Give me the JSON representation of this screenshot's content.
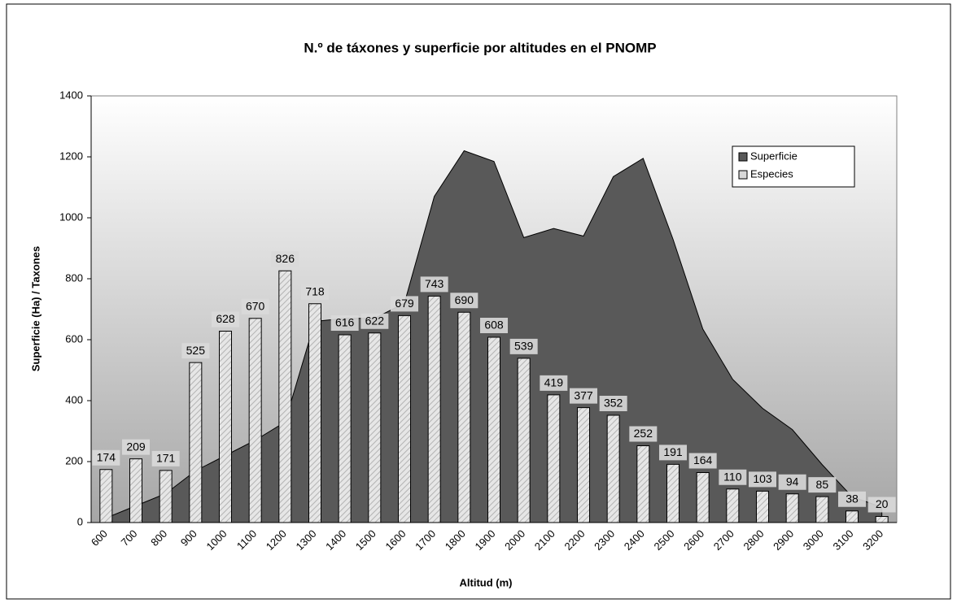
{
  "chart_data": {
    "type": "bar",
    "title": "N.º de táxones y superficie por altitudes en el PNOMP",
    "xlabel": "Altitud (m)",
    "ylabel": "Superficie (Ha) / Taxones",
    "categories": [
      "600",
      "700",
      "800",
      "900",
      "1000",
      "1100",
      "1200",
      "1300",
      "1400",
      "1500",
      "1600",
      "1700",
      "1800",
      "1900",
      "2000",
      "2100",
      "2200",
      "2300",
      "2400",
      "2500",
      "2600",
      "2700",
      "2800",
      "2900",
      "3000",
      "3100",
      "3200"
    ],
    "series": [
      {
        "name": "Superficie",
        "type": "area",
        "color": "#595959",
        "values": [
          15,
          55,
          95,
          170,
          220,
          270,
          330,
          660,
          670,
          670,
          720,
          1070,
          1220,
          1185,
          935,
          965,
          940,
          1135,
          1195,
          930,
          635,
          470,
          375,
          305,
          190,
          85,
          50
        ]
      },
      {
        "name": "Especies",
        "type": "bar",
        "color": "#d9d9d9",
        "values": [
          174,
          209,
          171,
          525,
          628,
          670,
          826,
          718,
          616,
          622,
          679,
          743,
          690,
          608,
          539,
          419,
          377,
          352,
          252,
          191,
          164,
          110,
          103,
          94,
          85,
          38,
          20
        ]
      }
    ],
    "ylim": [
      0,
      1400
    ],
    "yticks": [
      0,
      200,
      400,
      600,
      800,
      1000,
      1200,
      1400
    ],
    "grid": false,
    "legend": "upper-right"
  }
}
